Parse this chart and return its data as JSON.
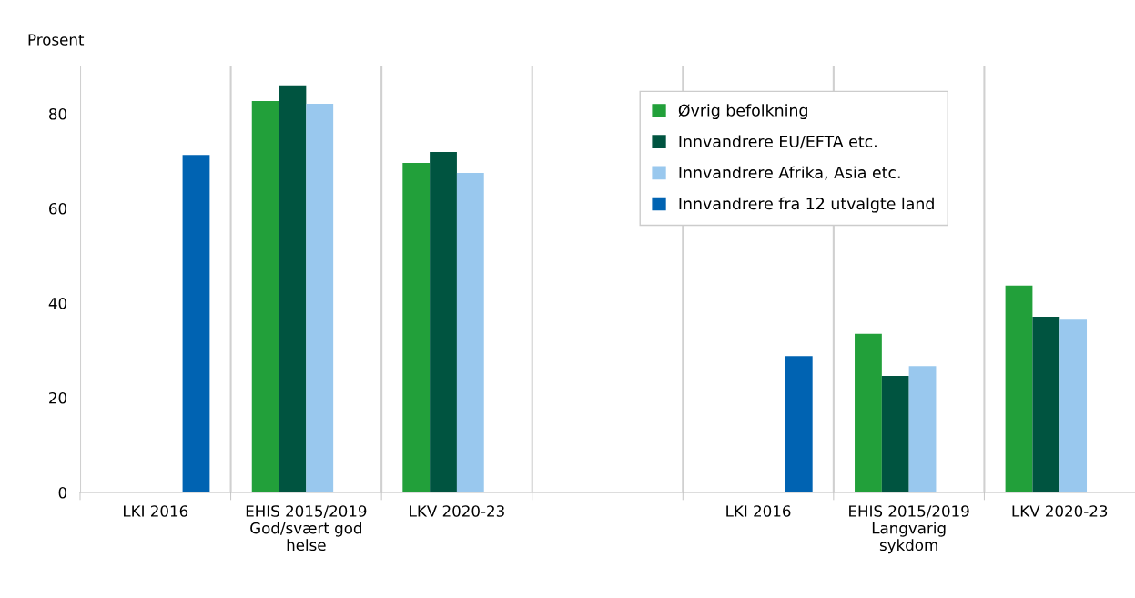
{
  "chart_data": {
    "type": "bar",
    "ylabel": "Prosent",
    "categories": [
      "LKI 2016",
      "EHIS 2015/2019\nGod/svært god\nhelse",
      "LKV 2020-23",
      null,
      "LKI 2016",
      "EHIS 2015/2019\nLangvarig\nsykdom",
      "LKV 2020-23"
    ],
    "series": [
      {
        "name": "Øvrig befolkning",
        "color": "#22a03a",
        "values": [
          null,
          82.7,
          69.6,
          null,
          null,
          33.5,
          43.7
        ]
      },
      {
        "name": "Innvandrere EU/EFTA etc.",
        "color": "#005440",
        "values": [
          null,
          86.0,
          71.9,
          null,
          null,
          24.6,
          37.1
        ]
      },
      {
        "name": "Innvandrere Afrika, Asia etc.",
        "color": "#99c8ee",
        "values": [
          null,
          82.1,
          67.5,
          null,
          null,
          26.7,
          36.5
        ]
      },
      {
        "name": "Innvandrere fra 12 utvalgte land",
        "color": "#0063b2",
        "values": [
          71.3,
          null,
          null,
          null,
          28.8,
          null,
          null
        ]
      }
    ],
    "ylim": [
      0,
      90
    ],
    "yticks": [
      0,
      20,
      40,
      60,
      80
    ],
    "grid": "x",
    "legend": "top right"
  }
}
